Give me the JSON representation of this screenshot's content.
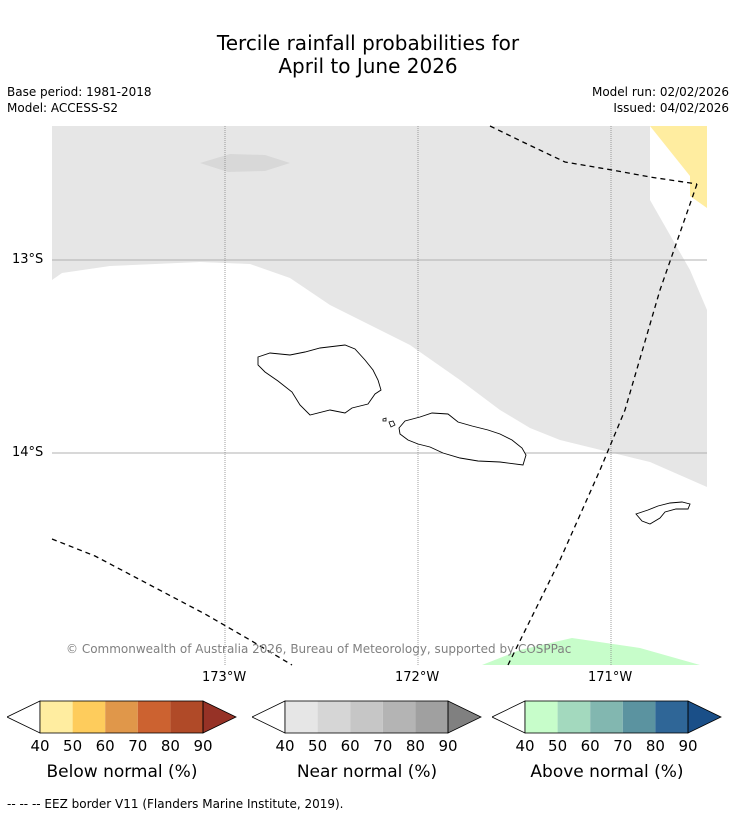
{
  "title_line1": "Tercile rainfall probabilities for",
  "title_line2": "April to June 2026",
  "meta_left": {
    "base_period": "Base period: 1981-2018",
    "model": "Model: ACCESS-S2"
  },
  "meta_right": {
    "model_run": "Model run: 02/02/2026",
    "issued": "Issued: 04/02/2026"
  },
  "map": {
    "lat_labels": [
      "13°S",
      "14°S"
    ],
    "lon_labels": [
      "173°W",
      "172°W",
      "171°W"
    ],
    "copyright": "© Commonwealth of Australia 2026, Bureau of Meteorology, supported by COSPPac",
    "colors": {
      "near_normal_area": "#e6e6e6",
      "below_normal_area": "#ffeda0",
      "above_normal_area": "#c7fdca",
      "grid": "#b0b0b0"
    }
  },
  "legends": [
    {
      "caption": "Below normal (%)",
      "ticks": [
        "40",
        "50",
        "60",
        "70",
        "80",
        "90"
      ],
      "colors": [
        "#ffffff",
        "#ffeda0",
        "#fecc5c",
        "#e0974a",
        "#cc6230",
        "#b04a28",
        "#963226"
      ]
    },
    {
      "caption": "Near normal (%)",
      "ticks": [
        "40",
        "50",
        "60",
        "70",
        "80",
        "90"
      ],
      "colors": [
        "#ffffff",
        "#e6e6e6",
        "#d6d6d6",
        "#c6c6c6",
        "#b4b4b4",
        "#a0a0a0",
        "#808080"
      ]
    },
    {
      "caption": "Above normal (%)",
      "ticks": [
        "40",
        "50",
        "60",
        "70",
        "80",
        "90"
      ],
      "colors": [
        "#ffffff",
        "#c7fdca",
        "#a3d9be",
        "#82b7b0",
        "#5b93a0",
        "#2f6697",
        "#1a4f88"
      ]
    }
  ],
  "footnote": "-- -- -- EEZ border V11 (Flanders Marine Institute, 2019)."
}
